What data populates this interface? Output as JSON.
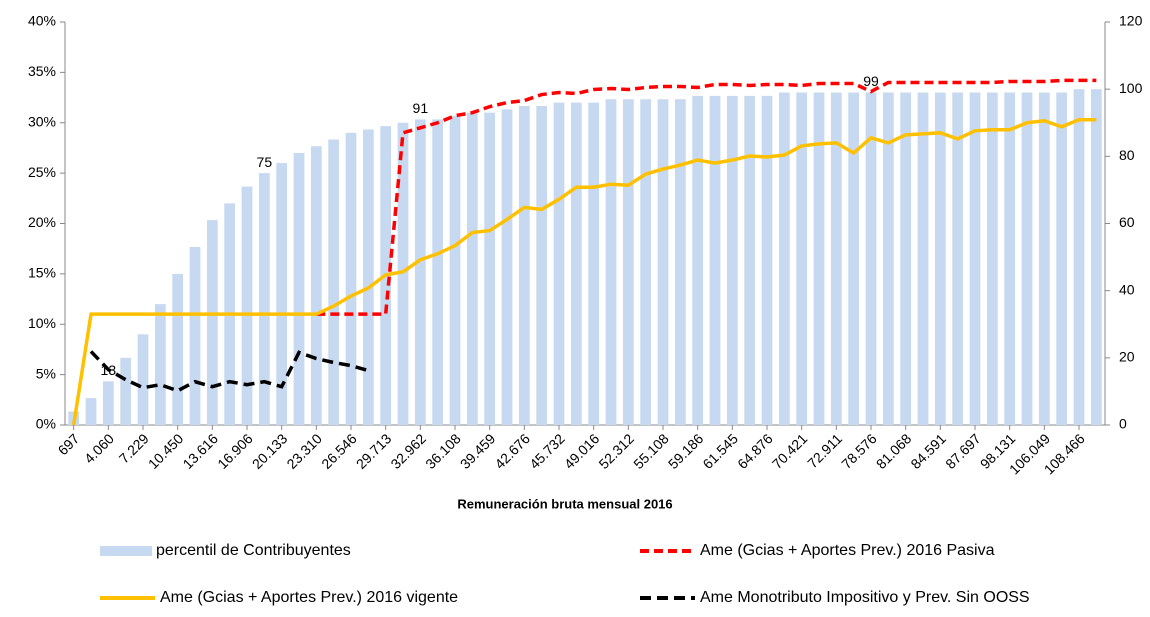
{
  "chart_data": {
    "type": "bar",
    "xlabel": "Remuneración bruta mensual 2016",
    "categories": [
      "697",
      null,
      "4.060",
      null,
      "7.229",
      null,
      "10.450",
      null,
      "13.616",
      null,
      "16.906",
      null,
      "20.133",
      null,
      "23.310",
      null,
      "26.546",
      null,
      "29.713",
      null,
      "32.962",
      null,
      "36.108",
      null,
      "39.459",
      null,
      "42.676",
      null,
      "45.732",
      null,
      "49.016",
      null,
      "52.312",
      null,
      "55.108",
      null,
      "59.186",
      null,
      "61.545",
      null,
      "64.876",
      null,
      "70.421",
      null,
      "72.911",
      null,
      "78.576",
      null,
      "81.068",
      null,
      "84.591",
      null,
      "87.697",
      null,
      "98.131",
      null,
      "106.049",
      null,
      "108.466",
      null
    ],
    "ylim": [
      0,
      40
    ],
    "yticks": [
      {
        "value": 0,
        "label": "0%"
      },
      {
        "value": 5,
        "label": "5%"
      },
      {
        "value": 10,
        "label": "10%"
      },
      {
        "value": 15,
        "label": "15%"
      },
      {
        "value": 20,
        "label": "20%"
      },
      {
        "value": 25,
        "label": "25%"
      },
      {
        "value": 30,
        "label": "30%"
      },
      {
        "value": 35,
        "label": "35%"
      },
      {
        "value": 40,
        "label": "40%"
      }
    ],
    "y2lim": [
      0,
      120
    ],
    "y2ticks": [
      0,
      20,
      40,
      60,
      80,
      100,
      120
    ],
    "series": [
      {
        "name": "percentil de Contribuyentes",
        "type": "bar",
        "axis": "y2",
        "color": "#c6d9f1",
        "values": [
          4,
          8,
          13,
          20,
          27,
          36,
          45,
          53,
          61,
          66,
          71,
          75,
          78,
          81,
          83,
          85,
          87,
          88,
          89,
          90,
          91,
          91,
          92,
          93,
          93,
          94,
          95,
          95,
          96,
          96,
          96,
          97,
          97,
          97,
          97,
          97,
          98,
          98,
          98,
          98,
          98,
          99,
          99,
          99,
          99,
          99,
          99,
          99,
          99,
          99,
          99,
          99,
          99,
          99,
          99,
          99,
          99,
          99,
          100,
          100
        ],
        "value_labels": [
          null,
          null,
          "13",
          null,
          null,
          null,
          null,
          null,
          null,
          null,
          null,
          "75",
          null,
          null,
          null,
          null,
          null,
          null,
          null,
          null,
          "91",
          null,
          null,
          null,
          null,
          null,
          null,
          null,
          null,
          null,
          null,
          null,
          null,
          null,
          null,
          null,
          null,
          null,
          null,
          null,
          null,
          null,
          null,
          null,
          null,
          null,
          "99",
          null,
          null,
          null,
          null,
          null,
          null,
          null,
          null,
          null,
          null,
          null,
          null,
          null
        ]
      },
      {
        "name": "Ame (Gcias + Aportes Prev.) 2016 Pasiva",
        "type": "line",
        "axis": "y",
        "color": "#ff0000",
        "dash": "9,5",
        "values": [
          null,
          null,
          null,
          null,
          null,
          null,
          null,
          null,
          null,
          null,
          null,
          null,
          null,
          null,
          11,
          11,
          11,
          11,
          11,
          29,
          29.5,
          30,
          30.7,
          31,
          31.6,
          32,
          32.2,
          32.8,
          33,
          32.9,
          33.3,
          33.4,
          33.3,
          33.5,
          33.6,
          33.6,
          33.5,
          33.8,
          33.8,
          33.7,
          33.8,
          33.8,
          33.7,
          33.9,
          33.9,
          33.9,
          33.1,
          34,
          34,
          34,
          34,
          34,
          34,
          34,
          34.1,
          34.1,
          34.1,
          34.2,
          34.2,
          34.2
        ]
      },
      {
        "name": "Ame (Gcias + Aportes Prev.) 2016 vigente",
        "type": "line",
        "axis": "y",
        "color": "#ffc000",
        "values": [
          0,
          11,
          11,
          11,
          11,
          11,
          11,
          11,
          11,
          11,
          11,
          11,
          11,
          11,
          11,
          11.8,
          12.8,
          13.6,
          14.9,
          15.2,
          16.4,
          17,
          17.8,
          19.1,
          19.3,
          20.4,
          21.6,
          21.4,
          22.4,
          23.6,
          23.6,
          23.9,
          23.8,
          24.9,
          25.4,
          25.8,
          26.3,
          26,
          26.3,
          26.7,
          26.6,
          26.8,
          27.7,
          27.9,
          28,
          27,
          28.5,
          28,
          28.8,
          28.9,
          29,
          28.4,
          29.2,
          29.3,
          29.3,
          30,
          30.2,
          29.6,
          30.3,
          30.3
        ]
      },
      {
        "name": "Ame Monotributo Impositivo y Prev. Sin OOSS",
        "type": "line",
        "axis": "y",
        "color": "#000000",
        "dash": "11,6",
        "values": [
          null,
          7.3,
          5.5,
          4.5,
          3.7,
          4,
          3.4,
          4.3,
          3.8,
          4.3,
          4,
          4.3,
          3.8,
          7.2,
          6.6,
          6.2,
          5.9,
          5.4,
          null,
          null,
          null,
          null,
          null,
          null,
          null,
          null,
          null,
          null,
          null,
          null,
          null,
          null,
          null,
          null,
          null,
          null,
          null,
          null,
          null,
          null,
          null,
          null,
          null,
          null,
          null,
          null,
          null,
          null,
          null,
          null,
          null,
          null,
          null,
          null,
          null,
          null,
          null,
          null,
          null,
          null
        ]
      }
    ]
  }
}
